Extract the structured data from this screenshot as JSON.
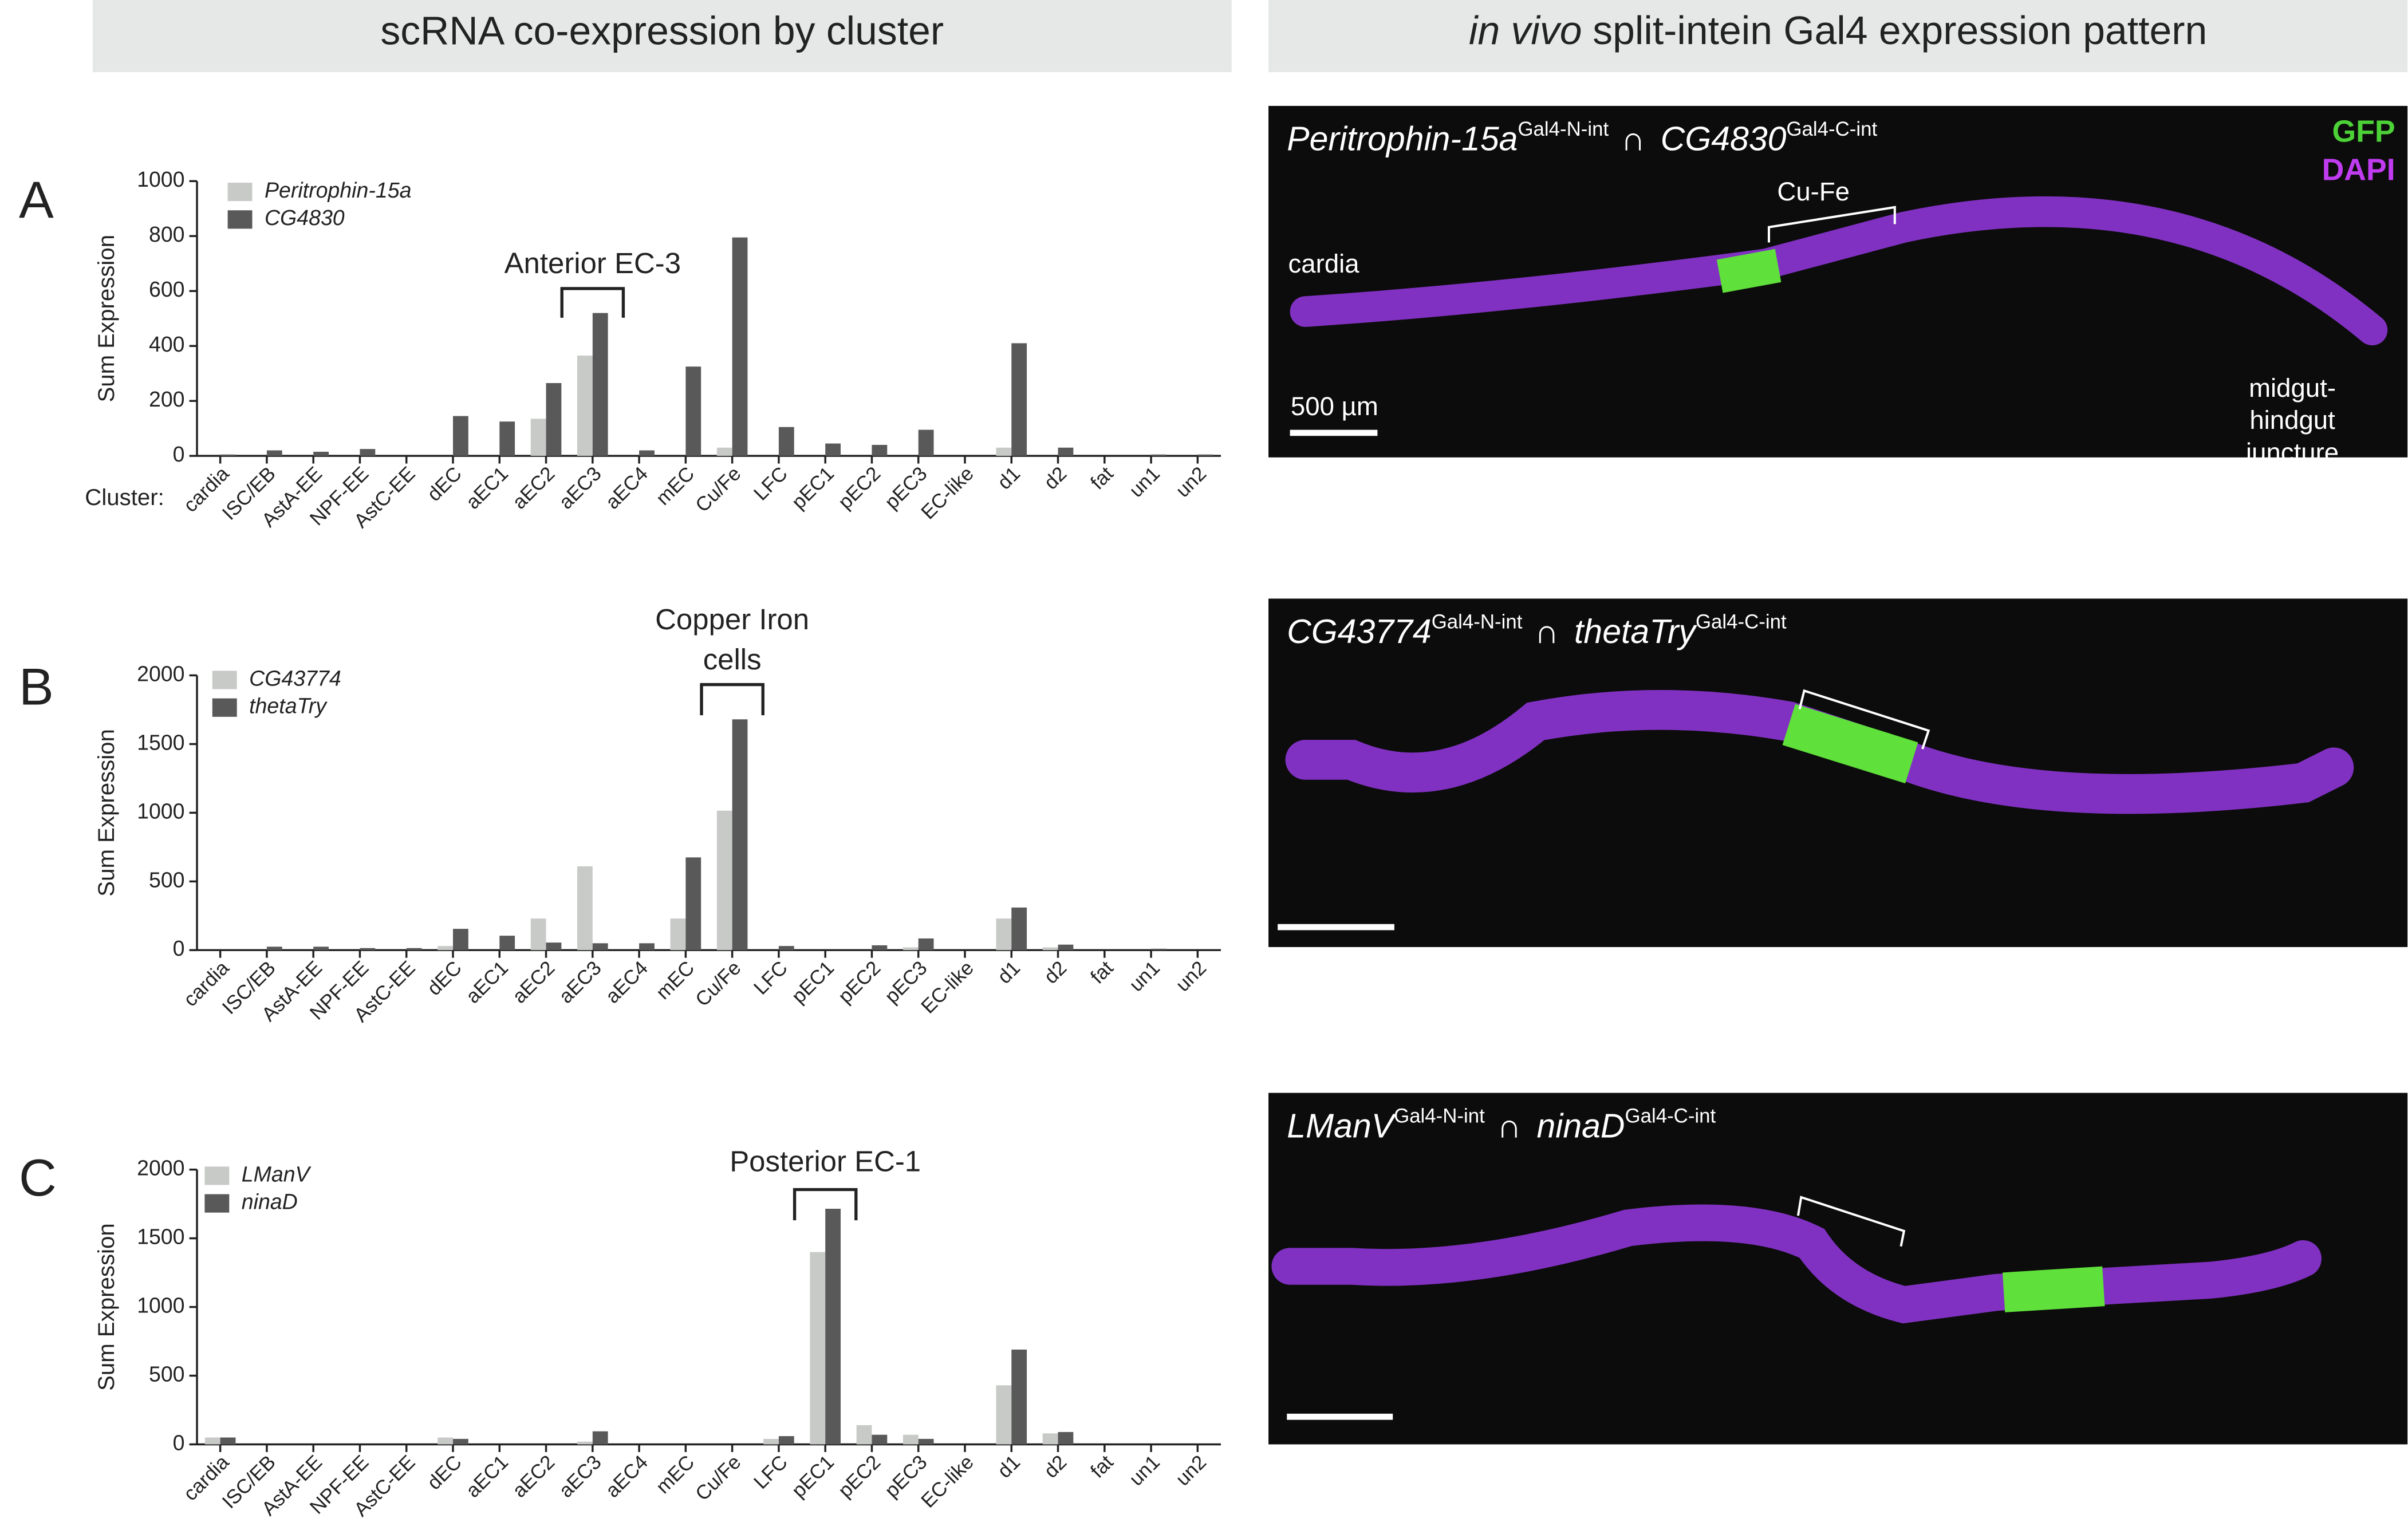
{
  "headers": {
    "left": "scRNA co-expression by cluster",
    "right_italic": "in vivo",
    "right": "split-intein Gal4 expression pattern"
  },
  "chart_data": [
    {
      "type": "bar",
      "panel_label": "A",
      "annotation": [
        "Anterior EC-3"
      ],
      "y_label": "Sum Expression",
      "x_label": "Cluster:",
      "categories": [
        "cardia",
        "ISC/EB",
        "AstA-EE",
        "NPF-EE",
        "AstC-EE",
        "dEC",
        "aEC1",
        "aEC2",
        "aEC3",
        "aEC4",
        "mEC",
        "Cu/Fe",
        "LFC",
        "pEC1",
        "pEC2",
        "pEC3",
        "EC-like",
        "d1",
        "d2",
        "fat",
        "un1",
        "un2"
      ],
      "series": [
        {
          "name": "Peritrophin-15a",
          "color": "#c8cac8",
          "values": [
            0,
            0,
            0,
            0,
            0,
            0,
            0,
            135,
            365,
            0,
            0,
            30,
            0,
            0,
            0,
            0,
            0,
            30,
            0,
            0,
            0,
            0
          ]
        },
        {
          "name": "CG4830",
          "color": "#595959",
          "values": [
            5,
            20,
            15,
            25,
            0,
            145,
            125,
            265,
            520,
            20,
            325,
            795,
            105,
            45,
            40,
            95,
            0,
            410,
            30,
            0,
            5,
            5
          ]
        }
      ],
      "ylim": [
        0,
        1000
      ],
      "yticks": [
        0,
        200,
        400,
        600,
        800,
        1000
      ]
    },
    {
      "type": "bar",
      "panel_label": "B",
      "annotation": [
        "Copper Iron",
        "cells"
      ],
      "y_label": "Sum Expression",
      "categories": [
        "cardia",
        "ISC/EB",
        "AstA-EE",
        "NPF-EE",
        "AstC-EE",
        "dEC",
        "aEC1",
        "aEC2",
        "aEC3",
        "aEC4",
        "mEC",
        "Cu/Fe",
        "LFC",
        "pEC1",
        "pEC2",
        "pEC3",
        "EC-like",
        "d1",
        "d2",
        "fat",
        "un1",
        "un2"
      ],
      "series": [
        {
          "name": "CG43774",
          "color": "#c8cac8",
          "values": [
            0,
            0,
            0,
            0,
            0,
            30,
            0,
            230,
            610,
            0,
            230,
            1015,
            0,
            0,
            0,
            20,
            0,
            230,
            20,
            0,
            0,
            0
          ]
        },
        {
          "name": "thetaTry",
          "color": "#595959",
          "values": [
            0,
            25,
            25,
            15,
            15,
            155,
            105,
            55,
            50,
            50,
            675,
            1680,
            30,
            0,
            35,
            85,
            0,
            310,
            40,
            0,
            10,
            0
          ]
        }
      ],
      "ylim": [
        0,
        2000
      ],
      "yticks": [
        0,
        500,
        1000,
        1500,
        2000
      ]
    },
    {
      "type": "bar",
      "panel_label": "C",
      "annotation": [
        "Posterior EC-1"
      ],
      "y_label": "Sum Expression",
      "categories": [
        "cardia",
        "ISC/EB",
        "AstA-EE",
        "NPF-EE",
        "AstC-EE",
        "dEC",
        "aEC1",
        "aEC2",
        "aEC3",
        "aEC4",
        "mEC",
        "Cu/Fe",
        "LFC",
        "pEC1",
        "pEC2",
        "pEC3",
        "EC-like",
        "d1",
        "d2",
        "fat",
        "un1",
        "un2"
      ],
      "series": [
        {
          "name": "LManV",
          "color": "#c8cac8",
          "values": [
            50,
            0,
            0,
            0,
            0,
            50,
            0,
            0,
            20,
            0,
            0,
            0,
            40,
            1400,
            140,
            70,
            0,
            430,
            80,
            0,
            0,
            0
          ]
        },
        {
          "name": "ninaD",
          "color": "#595959",
          "values": [
            50,
            0,
            0,
            0,
            0,
            40,
            0,
            0,
            95,
            0,
            0,
            0,
            60,
            1715,
            70,
            40,
            0,
            690,
            90,
            0,
            0,
            0
          ]
        }
      ],
      "ylim": [
        0,
        2000
      ],
      "yticks": [
        0,
        500,
        1000,
        1500,
        2000
      ]
    }
  ],
  "images": [
    {
      "gene_1": "Peritrophin-15a",
      "gene_1_sup": "Gal4-N-int",
      "intersect": "∩",
      "gene_2": "CG4830",
      "gene_2_sup": "Gal4-C-int",
      "gfp": "GFP",
      "dapi": "DAPI",
      "cardia": "cardia",
      "region": "Cu-Fe",
      "juncture": [
        "midgut-",
        "hindgut",
        "juncture"
      ],
      "scale": "500 µm"
    },
    {
      "gene_1": "CG43774",
      "gene_1_sup": "Gal4-N-int",
      "intersect": "∩",
      "gene_2": "thetaTry",
      "gene_2_sup": "Gal4-C-int"
    },
    {
      "gene_1": "LManV",
      "gene_1_sup": "Gal4-N-int",
      "intersect": "∩",
      "gene_2": "ninaD",
      "gene_2_sup": "Gal4-C-int"
    }
  ]
}
